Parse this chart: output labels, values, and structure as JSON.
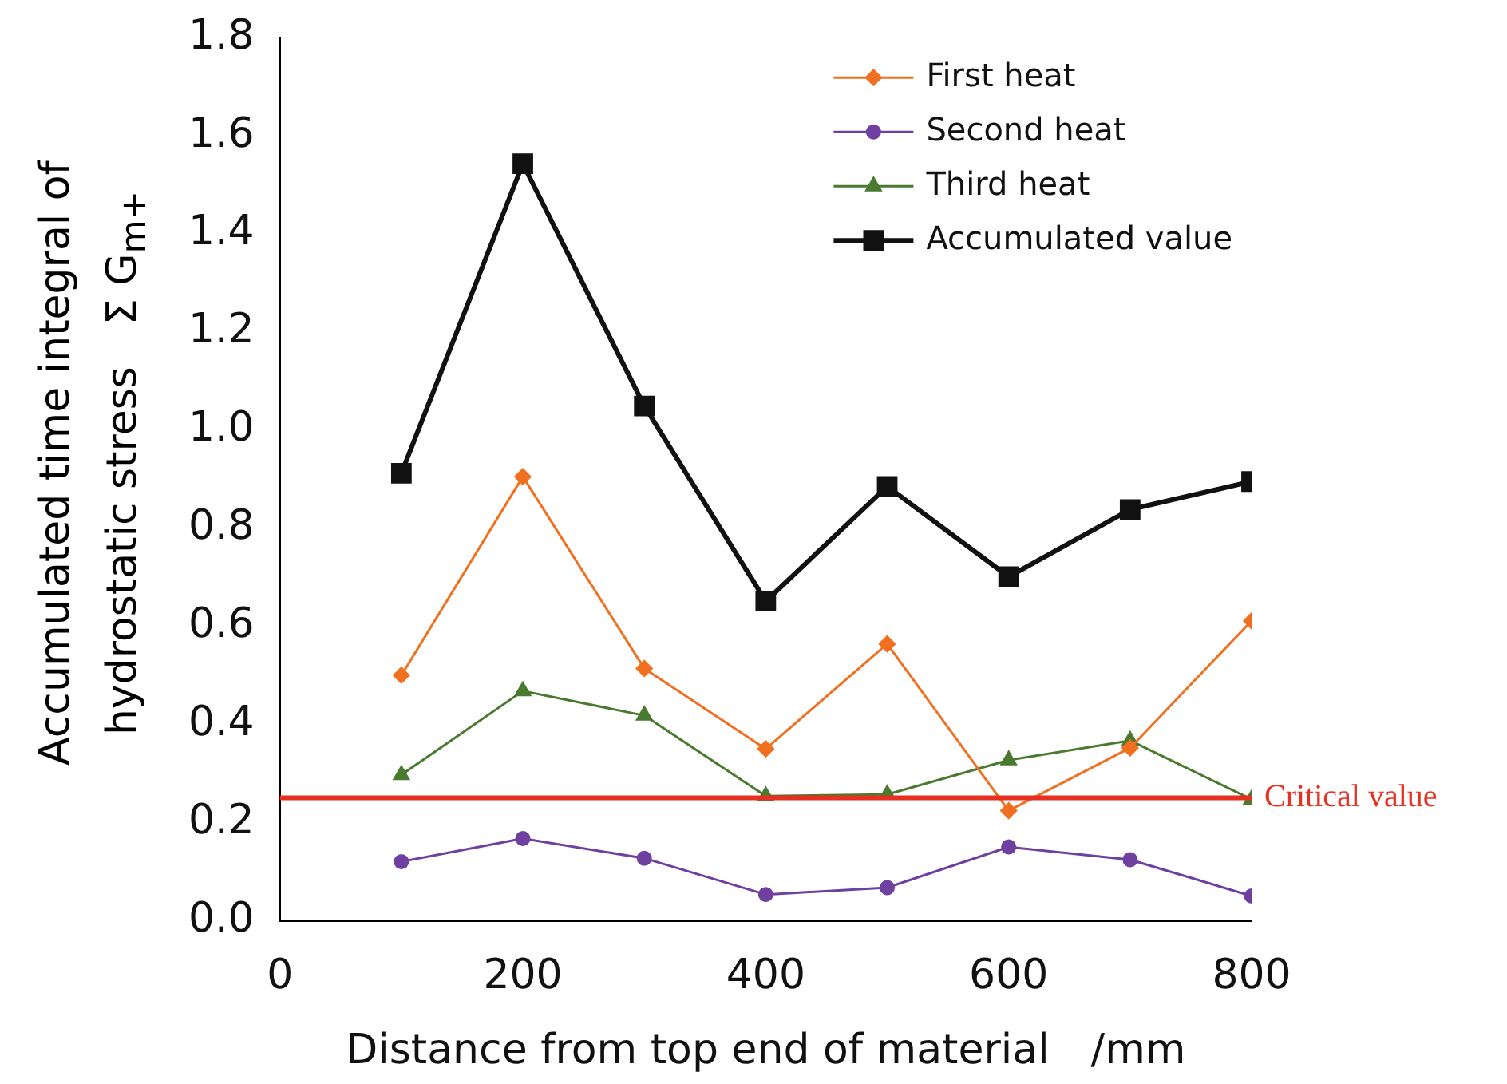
{
  "chart_data": {
    "type": "line",
    "xlabel": "Distance from top end of material　/mm",
    "ylabel": "Accumulated time integral of\nhydrostatic stress　Σ G$_{m+}$",
    "x": [
      100,
      200,
      300,
      400,
      500,
      600,
      700,
      800
    ],
    "series": [
      {
        "name": "First heat",
        "color": "#f07020",
        "marker": "diamond",
        "values": [
          0.5,
          0.905,
          0.514,
          0.35,
          0.564,
          0.224,
          0.352,
          0.611
        ]
      },
      {
        "name": "Second heat",
        "color": "#7040a0",
        "marker": "circle",
        "values": [
          0.12,
          0.167,
          0.127,
          0.053,
          0.067,
          0.15,
          0.124,
          0.05
        ]
      },
      {
        "name": "Third heat",
        "color": "#4a7a30",
        "marker": "triangle",
        "values": [
          0.297,
          0.468,
          0.418,
          0.254,
          0.257,
          0.327,
          0.367,
          0.247
        ]
      },
      {
        "name": "Accumulated value",
        "color": "#111111",
        "marker": "square",
        "values": [
          0.912,
          1.543,
          1.049,
          0.651,
          0.885,
          0.701,
          0.838,
          0.895
        ]
      }
    ],
    "ref_lines": [
      {
        "axis": "y",
        "value": 0.25,
        "label": "Critical value",
        "color": "#e83020"
      }
    ],
    "xlim": [
      0,
      800
    ],
    "xticks": [
      0,
      200,
      400,
      600,
      800
    ],
    "ylim": [
      0,
      1.8
    ],
    "yticks": [
      {
        "value": 0,
        "label": "0.0"
      },
      0.2,
      0.4,
      0.6,
      0.8,
      {
        "value": 1,
        "label": "1.0"
      },
      1.2,
      1.4,
      1.6,
      1.8
    ],
    "grid": false,
    "legend": "top right"
  }
}
